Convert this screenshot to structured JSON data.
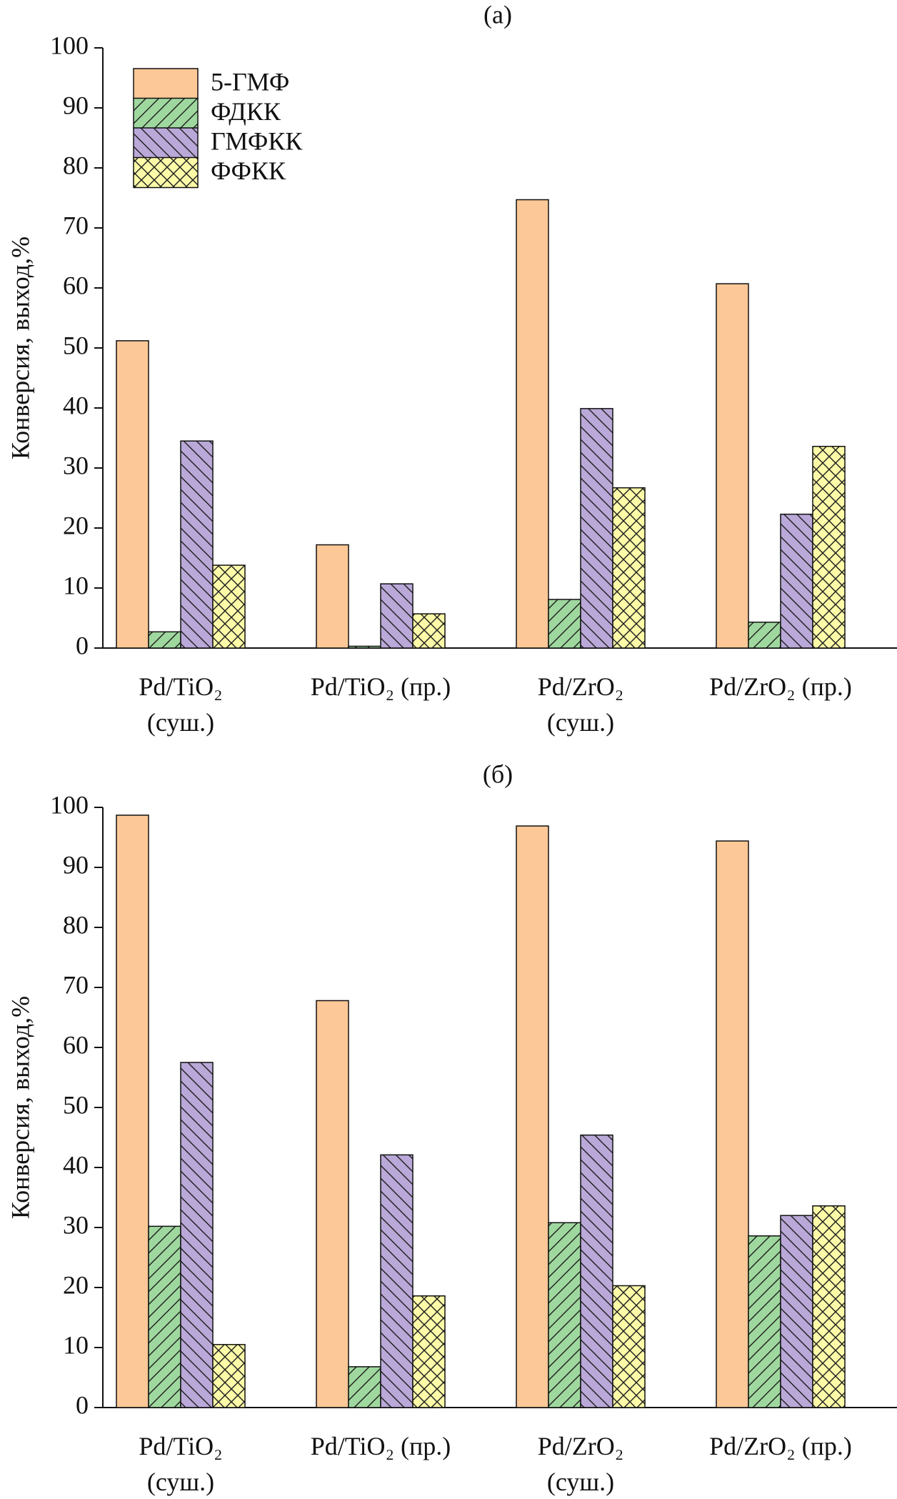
{
  "chart_data": [
    {
      "type": "bar",
      "title": "(а)",
      "y_label": "Конверсия, выход,%",
      "categories": [
        "Pd/TiO₂ (суш.)",
        "Pd/TiO₂ (пр.)",
        "Pd/ZrO₂ (суш.)",
        "Pd/ZrO₂ (пр.)"
      ],
      "series": [
        {
          "name": "5-ГМФ",
          "color": "#fdc897",
          "hatch": "none",
          "values": [
            51.2,
            17.2,
            74.7,
            60.7
          ]
        },
        {
          "name": "ФДКК",
          "color": "#9fd89f",
          "hatch": "/",
          "values": [
            2.7,
            0.3,
            8.1,
            4.3
          ]
        },
        {
          "name": "ГМФКК",
          "color": "#b9a8d8",
          "hatch": "\\",
          "values": [
            34.5,
            10.7,
            39.9,
            22.3
          ]
        },
        {
          "name": "ФФКК",
          "color": "#fdfba8",
          "hatch": "x",
          "values": [
            13.8,
            5.7,
            26.7,
            33.6
          ]
        }
      ],
      "ylim": [
        0,
        100
      ],
      "yticks": [
        0,
        10,
        20,
        30,
        40,
        50,
        60,
        70,
        80,
        90,
        100
      ],
      "legend": "upper left"
    },
    {
      "type": "bar",
      "title": "(б)",
      "y_label": "Конверсия, выход,%",
      "categories": [
        "Pd/TiO₂ (суш.)",
        "Pd/TiO₂ (пр.)",
        "Pd/ZrO₂ (суш.)",
        "Pd/ZrO₂ (пр.)"
      ],
      "series": [
        {
          "name": "5-ГМФ",
          "color": "#fdc897",
          "hatch": "none",
          "values": [
            98.7,
            67.8,
            96.9,
            94.4
          ]
        },
        {
          "name": "ФДКК",
          "color": "#9fd89f",
          "hatch": "/",
          "values": [
            30.2,
            6.8,
            30.8,
            28.6
          ]
        },
        {
          "name": "ГМФКК",
          "color": "#b9a8d8",
          "hatch": "\\",
          "values": [
            57.5,
            42.1,
            45.4,
            32.0
          ]
        },
        {
          "name": "ФФКК",
          "color": "#fdfba8",
          "hatch": "x",
          "values": [
            10.5,
            18.6,
            20.3,
            33.6
          ]
        }
      ],
      "ylim": [
        0,
        100
      ],
      "yticks": [
        0,
        10,
        20,
        30,
        40,
        50,
        60,
        70,
        80,
        90,
        100
      ]
    }
  ]
}
